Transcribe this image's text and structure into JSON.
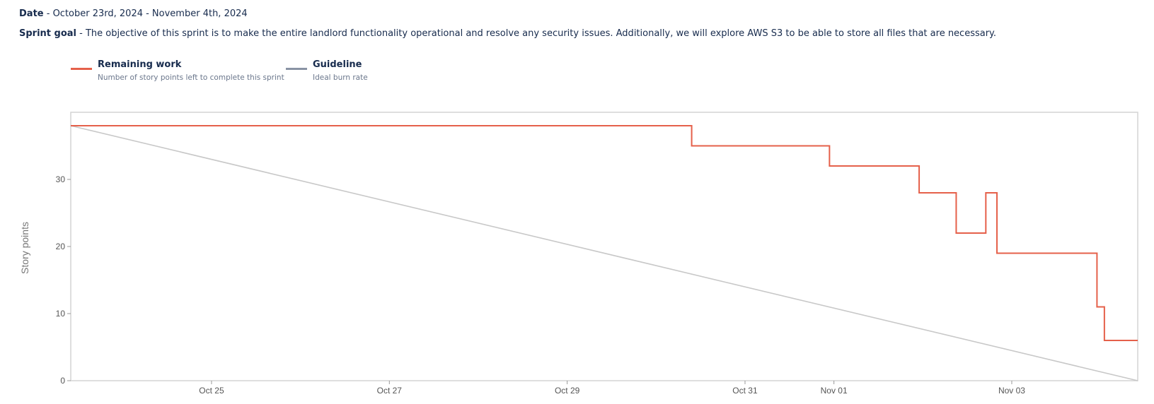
{
  "header": {
    "date_label": "Date",
    "date_value": " - October 23rd, 2024 - November 4th, 2024",
    "goal_label": "Sprint goal",
    "goal_value": " - The objective of this sprint is to make the entire landlord functionality operational and resolve any security issues. Additionally, we will explore AWS S3 to be able to store all files that are necessary."
  },
  "legend": [
    {
      "title": "Remaining work",
      "description": "Number of story points left to complete this sprint",
      "color": "#e5604a"
    },
    {
      "title": "Guideline",
      "description": "Ideal burn rate",
      "color": "#8993a4"
    }
  ],
  "chart_data": {
    "type": "line",
    "ylabel": "Story points",
    "xlabel": "",
    "xlim": [
      "2024-10-23T10:00",
      "2024-11-04T10:00"
    ],
    "ylim": [
      0,
      40
    ],
    "y_ticks": [
      0,
      10,
      20,
      30
    ],
    "x_ticks": [
      {
        "label": "Oct 25",
        "t": "2024-10-25T00:00"
      },
      {
        "label": "Oct 27",
        "t": "2024-10-27T00:00"
      },
      {
        "label": "Oct 29",
        "t": "2024-10-29T00:00"
      },
      {
        "label": "Oct 31",
        "t": "2024-10-31T00:00"
      },
      {
        "label": "Nov 01",
        "t": "2024-11-01T00:00"
      },
      {
        "label": "Nov 03",
        "t": "2024-11-03T00:00"
      }
    ],
    "series": [
      {
        "name": "Remaining work",
        "color": "#e5604a",
        "step": true,
        "points": [
          {
            "t": "2024-10-23T10:00",
            "y": 38
          },
          {
            "t": "2024-10-30T09:36",
            "y": 35
          },
          {
            "t": "2024-10-31T22:48",
            "y": 32
          },
          {
            "t": "2024-11-01T23:00",
            "y": 28
          },
          {
            "t": "2024-11-02T09:00",
            "y": 22
          },
          {
            "t": "2024-11-02T17:00",
            "y": 28
          },
          {
            "t": "2024-11-02T20:00",
            "y": 19
          },
          {
            "t": "2024-11-03T23:00",
            "y": 11
          },
          {
            "t": "2024-11-04T01:00",
            "y": 6
          },
          {
            "t": "2024-11-04T10:00",
            "y": 6
          }
        ]
      },
      {
        "name": "Guideline",
        "color": "#c8c8c8",
        "step": false,
        "points": [
          {
            "t": "2024-10-23T10:00",
            "y": 38
          },
          {
            "t": "2024-11-04T10:00",
            "y": 0
          }
        ]
      }
    ]
  }
}
